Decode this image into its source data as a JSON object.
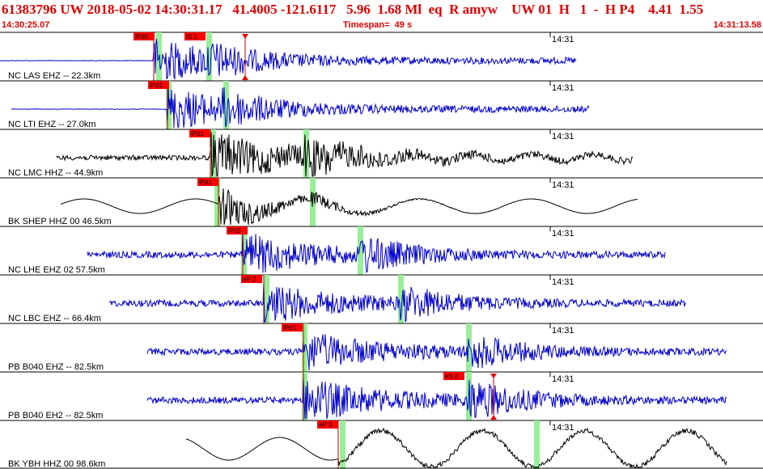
{
  "header": {
    "summary": "61383796 UW 2018-05-02 14:30:31.17   41.4005 -121.6117   5.96  1.68 Ml  eq  R amyw    UW 01  H   1  -  H P4    4.41  1.55",
    "start_time": "14:30:25.07",
    "timespan": "Timespan=  49 s",
    "end_time": "14:31:13.58"
  },
  "colors": {
    "blue_trace": "#0000cc",
    "black_trace": "#000000",
    "pick_box": "#ff0000",
    "window_band": "#99ee99",
    "pick_line": "#cc0000"
  },
  "traces": [
    {
      "label": "NC LAS EHZ -- 22.3km",
      "color": "#0000cc",
      "time_label": "14:31",
      "picks": [
        {
          "text": "iPd0",
          "kind": "P"
        },
        {
          "text": "iS 1",
          "kind": "S"
        }
      ],
      "hasTriangle": true
    },
    {
      "label": "NC LTI EHZ -- 27.0km",
      "color": "#0000cc",
      "time_label": "14:31",
      "picks": [
        {
          "text": "iPd1",
          "kind": "P"
        }
      ],
      "hasTriangle": false
    },
    {
      "label": "NC LMC HHZ -- 44.9km",
      "color": "#000000",
      "time_label": "14:31",
      "picks": [
        {
          "text": "iPd1",
          "kind": "P"
        }
      ],
      "hasTriangle": false
    },
    {
      "label": "BK SHEP HHZ 00 46.5km",
      "color": "#000000",
      "time_label": "14:31",
      "picks": [
        {
          "text": "iPd1",
          "kind": "P"
        }
      ],
      "hasTriangle": false
    },
    {
      "label": "NC LHE EHZ 02 57.5km",
      "color": "#0000cc",
      "time_label": "14:31",
      "picks": [
        {
          "text": "iPc0",
          "kind": "P"
        }
      ],
      "hasTriangle": false
    },
    {
      "label": "NC LBC EHZ -- 66.4km",
      "color": "#0000cc",
      "time_label": "14:31",
      "picks": [
        {
          "text": "eP 2",
          "kind": "P"
        }
      ],
      "hasTriangle": false
    },
    {
      "label": "PB B040 EHZ -- 82.5km",
      "color": "#0000cc",
      "time_label": "14:31",
      "picks": [
        {
          "text": "iPd1",
          "kind": "P"
        }
      ],
      "hasTriangle": false
    },
    {
      "label": "PB B040 EH2 -- 82.5km",
      "color": "#0000cc",
      "time_label": "14:31",
      "picks": [
        {
          "text": "eS 2",
          "kind": "S"
        }
      ],
      "hasTriangle": true
    },
    {
      "label": "BK YBH HHZ 00 98.6km",
      "color": "#000000",
      "time_label": "14:31",
      "picks": [
        {
          "text": "eP 3",
          "kind": "P"
        }
      ],
      "hasTriangle": false
    }
  ]
}
